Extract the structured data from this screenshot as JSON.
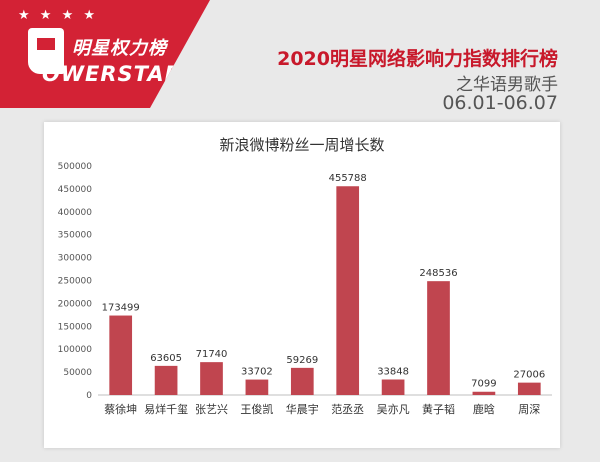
{
  "header": {
    "logo_stars": "★ ★ ★ ★",
    "logo_cn": "明星权力榜",
    "logo_en": "OWERSTAR",
    "title": "2020明星网络影响力指数排行榜",
    "subtitle": "之华语男歌手",
    "date_range": "06.01-06.07"
  },
  "colors": {
    "brand": "#d32235",
    "bar": "#c0454f"
  },
  "chart_data": {
    "type": "bar",
    "title": "新浪微博粉丝一周增长数",
    "categories": [
      "蔡徐坤",
      "易烊千玺",
      "张艺兴",
      "王俊凯",
      "华晨宇",
      "范丞丞",
      "吴亦凡",
      "黄子韬",
      "鹿晗",
      "周深"
    ],
    "values": [
      173499,
      63605,
      71740,
      33702,
      59269,
      455788,
      33848,
      248536,
      7099,
      27006
    ],
    "ylim": [
      0,
      500000
    ],
    "yticks": [
      0,
      50000,
      100000,
      150000,
      200000,
      250000,
      300000,
      350000,
      400000,
      450000,
      500000
    ],
    "grid": false,
    "legend": "none"
  }
}
